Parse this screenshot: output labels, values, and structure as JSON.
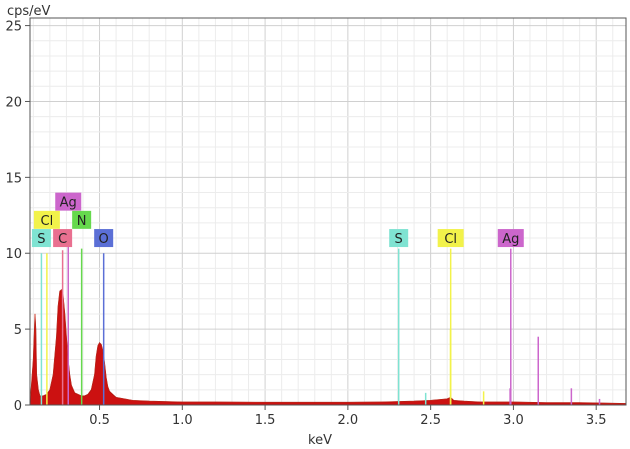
{
  "chart_data": {
    "type": "area",
    "title": "",
    "xlabel": "keV",
    "ylabel": "cps/eV",
    "xlim": [
      0.08,
      3.68
    ],
    "ylim": [
      0,
      25.5
    ],
    "grid": true,
    "x_ticks": [
      {
        "value": 0.5,
        "label": "0.5"
      },
      {
        "value": 1.0,
        "label": "1.0"
      },
      {
        "value": 1.5,
        "label": "1.5"
      },
      {
        "value": 2.0,
        "label": "2.0"
      },
      {
        "value": 2.5,
        "label": "2.5"
      },
      {
        "value": 3.0,
        "label": "3.0"
      },
      {
        "value": 3.5,
        "label": "3.5"
      }
    ],
    "y_ticks": [
      {
        "value": 0,
        "label": "0"
      },
      {
        "value": 5,
        "label": "5"
      },
      {
        "value": 10,
        "label": "10"
      },
      {
        "value": 15,
        "label": "15"
      },
      {
        "value": 20,
        "label": "20"
      },
      {
        "value": 25,
        "label": "25"
      }
    ],
    "spectrum": {
      "color": "#cc1111",
      "x": [
        0.08,
        0.1,
        0.11,
        0.115,
        0.12,
        0.13,
        0.14,
        0.16,
        0.18,
        0.2,
        0.22,
        0.24,
        0.25,
        0.26,
        0.27,
        0.28,
        0.29,
        0.3,
        0.31,
        0.32,
        0.33,
        0.35,
        0.37,
        0.39,
        0.41,
        0.43,
        0.45,
        0.47,
        0.48,
        0.49,
        0.5,
        0.51,
        0.52,
        0.53,
        0.54,
        0.55,
        0.56,
        0.58,
        0.6,
        0.65,
        0.7,
        0.8,
        1.0,
        1.2,
        1.5,
        1.8,
        2.0,
        2.2,
        2.4,
        2.5,
        2.6,
        2.62,
        2.64,
        2.7,
        2.8,
        3.0,
        3.2,
        3.4,
        3.68
      ],
      "y": [
        0,
        3.0,
        6.0,
        5.0,
        2.0,
        1.0,
        0.6,
        0.6,
        0.7,
        1.0,
        2.0,
        4.5,
        6.5,
        7.5,
        7.6,
        7.2,
        6.0,
        4.5,
        3.0,
        2.0,
        1.3,
        0.8,
        0.7,
        0.6,
        0.6,
        0.7,
        1.0,
        2.0,
        3.2,
        3.9,
        4.1,
        4.0,
        3.6,
        2.8,
        1.8,
        1.2,
        0.9,
        0.7,
        0.5,
        0.4,
        0.3,
        0.25,
        0.2,
        0.2,
        0.18,
        0.18,
        0.18,
        0.2,
        0.25,
        0.3,
        0.4,
        0.5,
        0.3,
        0.25,
        0.2,
        0.2,
        0.15,
        0.15,
        0.1
      ]
    },
    "element_lines": [
      {
        "element": "S",
        "energy": 0.149,
        "height": 10.0,
        "color": "#7fe3d2",
        "label_y": 11.0
      },
      {
        "element": "Cl",
        "energy": 0.182,
        "height": 10.0,
        "color": "#f2f24a",
        "label_y": 12.2
      },
      {
        "element": "C",
        "energy": 0.277,
        "height": 10.2,
        "color": "#e97090",
        "label_y": 11.0
      },
      {
        "element": "Ag",
        "energy": 0.311,
        "height": 10.5,
        "color": "#cc66cc",
        "label_y": 13.4
      },
      {
        "element": "N",
        "energy": 0.392,
        "height": 10.3,
        "color": "#66d94d",
        "label_y": 12.2
      },
      {
        "element": "O",
        "energy": 0.525,
        "height": 10.0,
        "color": "#5b6fd6",
        "label_y": 11.0
      },
      {
        "element": "S",
        "energy": 2.307,
        "height": 10.3,
        "color": "#7fe3d2",
        "label_y": 11.0
      },
      {
        "element": "Cl",
        "energy": 2.621,
        "height": 10.3,
        "color": "#f2f24a",
        "label_y": 11.0
      },
      {
        "element": "Ag",
        "energy": 2.984,
        "height": 10.3,
        "color": "#cc66cc",
        "label_y": 11.0
      }
    ],
    "minor_lines": [
      {
        "energy": 2.47,
        "height": 0.8,
        "color": "#7fe3d2"
      },
      {
        "energy": 2.62,
        "height": 5.0,
        "color": "#f2f24a"
      },
      {
        "energy": 2.82,
        "height": 0.9,
        "color": "#f2f24a"
      },
      {
        "energy": 2.98,
        "height": 1.1,
        "color": "#cc66cc"
      },
      {
        "energy": 3.15,
        "height": 4.5,
        "color": "#cc66cc"
      },
      {
        "energy": 3.35,
        "height": 1.1,
        "color": "#cc66cc"
      },
      {
        "energy": 3.52,
        "height": 0.4,
        "color": "#cc66cc"
      }
    ]
  }
}
